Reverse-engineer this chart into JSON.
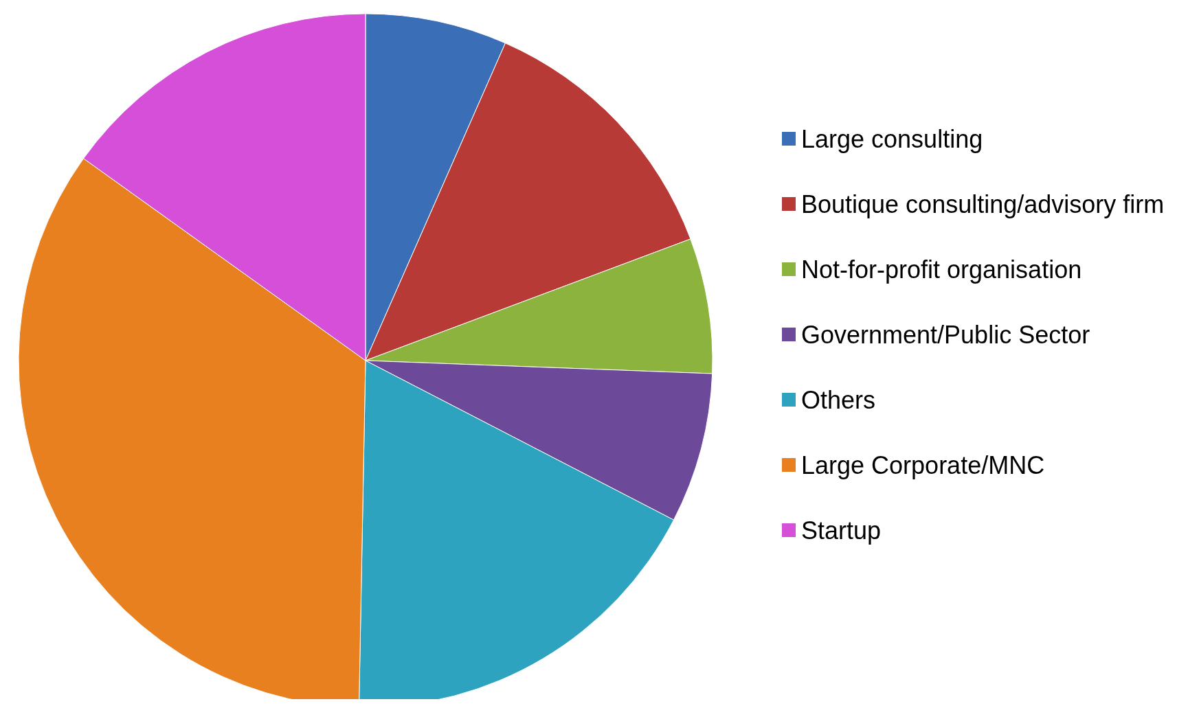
{
  "chart_data": {
    "type": "pie",
    "categories": [
      "Large consulting",
      "Boutique consulting/advisory firm",
      "Not-for-profit organisation",
      "Government/Public Sector",
      "Others",
      "Large Corporate/MNC",
      "Startup"
    ],
    "values": [
      6.6,
      12.7,
      6.3,
      7.0,
      17.7,
      34.6,
      15.1
    ],
    "colors": [
      "#3a6fb8",
      "#b83a37",
      "#8db33f",
      "#6c4a99",
      "#2ea3c0",
      "#e8801f",
      "#d64fd9"
    ],
    "legend": "right"
  }
}
